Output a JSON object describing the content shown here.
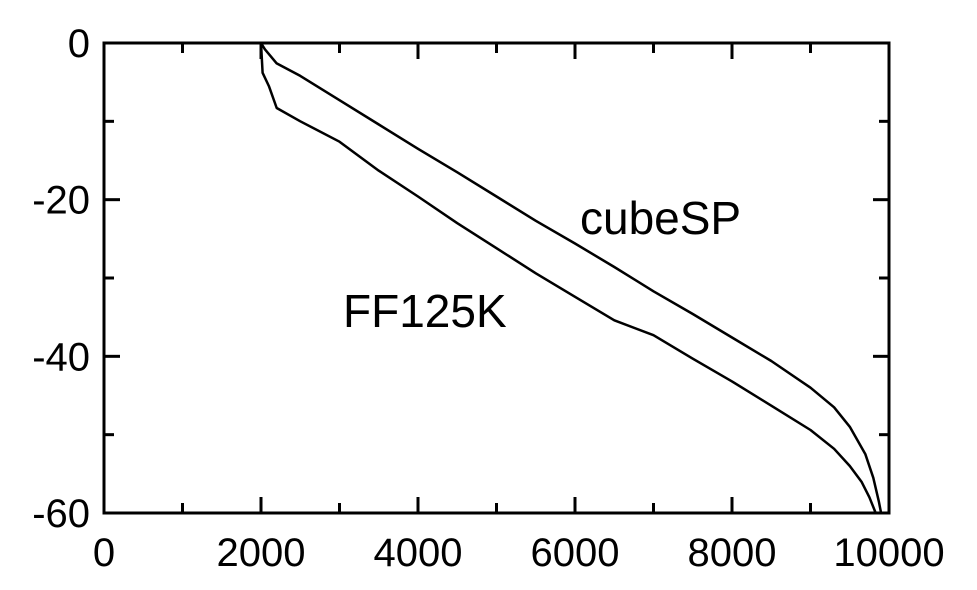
{
  "chart_data": {
    "type": "line",
    "title": "",
    "xlabel": "",
    "ylabel": "",
    "xlim": [
      0,
      10000
    ],
    "ylim": [
      -60,
      0
    ],
    "x_ticks": [
      0,
      2000,
      4000,
      6000,
      8000,
      10000
    ],
    "x_tick_labels": [
      "0",
      "2000",
      "4000",
      "6000",
      "8000",
      "10000"
    ],
    "y_ticks": [
      0,
      -20,
      -40,
      -60
    ],
    "y_tick_labels": [
      "0",
      "-20",
      "-40",
      "-60"
    ],
    "grid": false,
    "legend": "none",
    "series": [
      {
        "name": "cubeSP",
        "x": [
          2000,
          2050,
          2200,
          2500,
          3000,
          3500,
          4000,
          4500,
          5000,
          5500,
          6000,
          6500,
          7000,
          7500,
          8000,
          8500,
          9000,
          9300,
          9500,
          9700,
          9800,
          9870,
          9900
        ],
        "y": [
          0,
          -0.8,
          -2.6,
          -4.2,
          -7.3,
          -10.4,
          -13.5,
          -16.5,
          -19.6,
          -22.7,
          -25.6,
          -28.6,
          -31.7,
          -34.6,
          -37.6,
          -40.6,
          -44.0,
          -46.5,
          -49.0,
          -52.5,
          -55.5,
          -58.5,
          -60
        ]
      },
      {
        "name": "FF125K",
        "x": [
          2000,
          2020,
          2100,
          2200,
          2500,
          3000,
          3500,
          4000,
          4500,
          5000,
          5500,
          6000,
          6500,
          7000,
          7500,
          8000,
          8500,
          9000,
          9300,
          9500,
          9650,
          9750,
          9830
        ],
        "y": [
          0,
          -3.8,
          -5.5,
          -8.3,
          -10.0,
          -12.6,
          -16.3,
          -19.6,
          -23.0,
          -26.2,
          -29.4,
          -32.4,
          -35.4,
          -37.3,
          -40.3,
          -43.2,
          -46.3,
          -49.4,
          -51.8,
          -54.0,
          -56.0,
          -58.0,
          -60
        ]
      }
    ],
    "annotations": [
      "cubeSP",
      "FF125K"
    ]
  }
}
